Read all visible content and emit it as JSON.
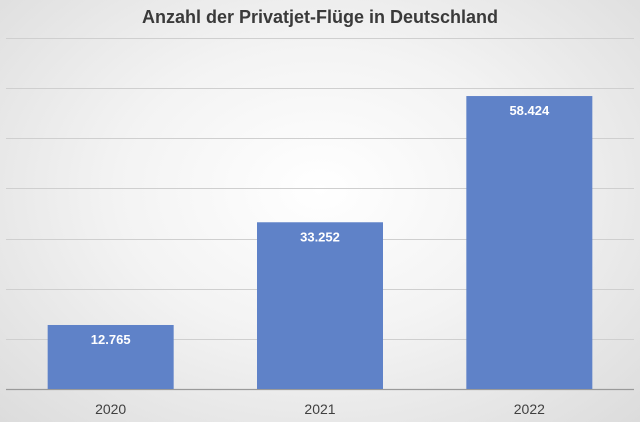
{
  "chart_data": {
    "type": "bar",
    "title": "Anzahl der Privatjet-Flüge in Deutschland",
    "categories": [
      "2020",
      "2021",
      "2022"
    ],
    "values": [
      12765,
      33252,
      58424
    ],
    "value_labels": [
      "12.765",
      "33.252",
      "58.424"
    ],
    "xlabel": "",
    "ylabel": "",
    "ylim": [
      0,
      70000
    ],
    "y_gridline_step": 10000,
    "grid": true,
    "legend": "none",
    "colors": {
      "bar": "#5f82c8",
      "bar_label": "#ffffff",
      "grid": "#cfcfcf"
    }
  }
}
